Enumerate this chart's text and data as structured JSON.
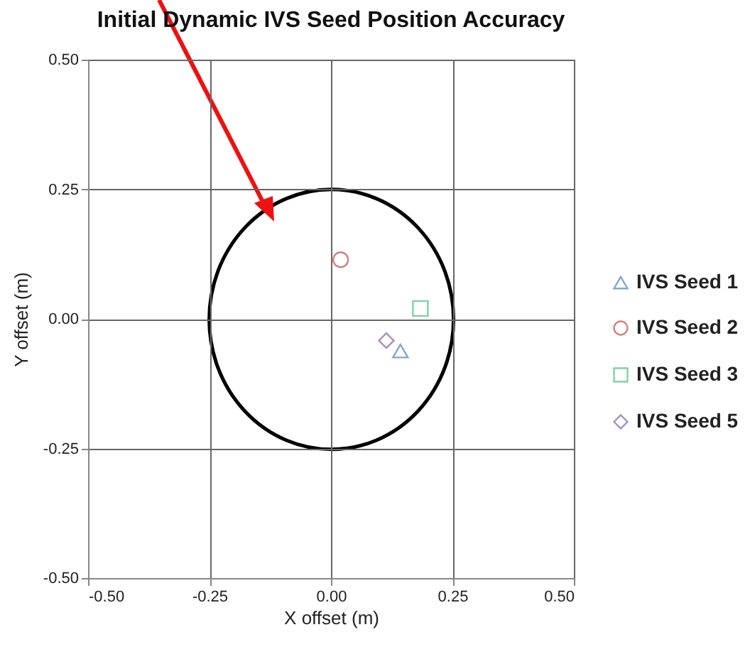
{
  "chart_data": {
    "type": "scatter",
    "title": "Initial Dynamic IVS Seed Position Accuracy",
    "xlabel": "X offset (m)",
    "ylabel": "Y offset (m)",
    "xlim": [
      -0.5,
      0.5
    ],
    "ylim": [
      -0.5,
      0.5
    ],
    "xticks": [
      {
        "value": -0.5,
        "label": "-0.50"
      },
      {
        "value": -0.25,
        "label": "-0.25"
      },
      {
        "value": 0,
        "label": "0.00"
      },
      {
        "value": 0.25,
        "label": "0.25"
      },
      {
        "value": 0.5,
        "label": "0.50"
      }
    ],
    "yticks": [
      {
        "value": -0.5,
        "label": "-0.50"
      },
      {
        "value": -0.25,
        "label": "-0.25"
      },
      {
        "value": 0,
        "label": "0.00"
      },
      {
        "value": 0.25,
        "label": "0.25"
      },
      {
        "value": 0.5,
        "label": "0.50"
      }
    ],
    "grid": true,
    "legend": "right",
    "series": [
      {
        "name": "IVS Seed 1",
        "color": "#4f81bd",
        "marker": "triangle",
        "x": [
          0.143
        ],
        "values": [
          -0.062
        ]
      },
      {
        "name": "IVS Seed 2",
        "color": "#c0504d",
        "marker": "circle",
        "x": [
          0.02
        ],
        "values": [
          0.114
        ]
      },
      {
        "name": "IVS Seed 3",
        "color": "#4bbf7f",
        "marker": "square",
        "x": [
          0.184
        ],
        "values": [
          0.02
        ]
      },
      {
        "name": "IVS Seed 5",
        "color": "#8064a2",
        "marker": "diamond",
        "x": [
          0.114
        ],
        "values": [
          -0.042
        ]
      }
    ]
  }
}
